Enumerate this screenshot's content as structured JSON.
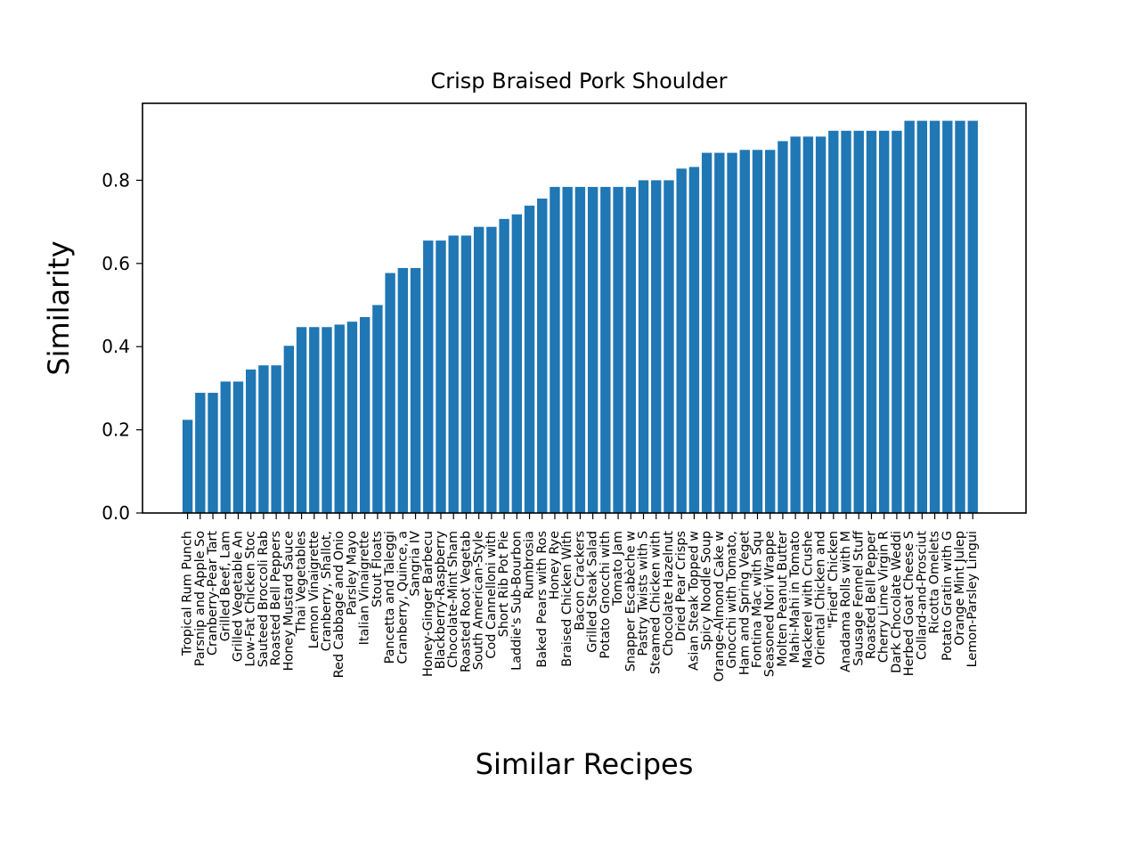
{
  "chart_data": {
    "type": "bar",
    "title": "Crisp Braised Pork Shoulder",
    "xlabel": "Similar Recipes",
    "ylabel": "Similarity",
    "ylim": [
      0,
      0.985
    ],
    "yticks": [
      "0.0",
      "0.2",
      "0.4",
      "0.6",
      "0.8"
    ],
    "bar_color": "#1f77b4",
    "grid": false,
    "legend": "none",
    "categories": [
      "Tropical Rum Punch",
      "Parsnip and Apple So",
      "Cranberry-Pear Tart",
      "Grilled Beef, Lam",
      "Grilled Vegetable An",
      "Low-Fat Chicken Stoc",
      "Sauteed Broccoli Rab",
      "Roasted Bell Peppers",
      "Honey Mustard Sauce",
      "Thai Vegetables",
      "Lemon Vinaigrette",
      "Cranberry, Shallot,",
      "Red Cabbage and Onio",
      "Parsley Mayo",
      "Italian Vinaigrette",
      "Stout Floats",
      "Pancetta and Taleggi",
      "Cranberry, Quince, a",
      "Sangria IV",
      "Honey-Ginger Barbecu",
      "Blackberry-Raspberry",
      "Chocolate-Mint Sham",
      "Roasted Root Vegetab",
      "South American-Style",
      "Cod Cannelloni with",
      "Short Rib Pot Pie",
      "Laddie's Sub-Bourbon",
      "Rumbrosia",
      "Baked Pears with Ros",
      "Honey Rye",
      "Braised Chicken With",
      "Bacon Crackers",
      "Grilled Steak Salad",
      "Potato Gnocchi with",
      "Tomato Jam",
      "Snapper Escabèche w",
      "Pastry Twists with S",
      "Steamed Chicken with",
      "Chocolate Hazelnut",
      "Dried Pear Crisps",
      "Asian Steak Topped w",
      "Spicy Noodle Soup",
      "Orange-Almond Cake w",
      "Gnocchi with Tomato,",
      "Ham and Spring Veget",
      "Fontina Mac with Squ",
      "Seasoned Nori Wrappe",
      "Molten Peanut Butter",
      "Mahi-Mahi in Tomato",
      "Mackerel with Crushe",
      "Oriental Chicken and",
      "\"Fried\" Chicken",
      "Anadama Rolls with M",
      "Sausage Fennel Stuff",
      "Roasted Bell Pepper",
      "Cherry Lime Virgin R",
      "Dark Chocolate Weddi",
      "Herbed Goat Cheese S",
      "Collard-and-Prosciut",
      "Ricotta Omelets",
      "Potato Gratin with G",
      "Orange Mint Julep",
      "Lemon-Parsley Lingui"
    ],
    "values": [
      0.224,
      0.289,
      0.289,
      0.316,
      0.316,
      0.345,
      0.355,
      0.355,
      0.402,
      0.447,
      0.447,
      0.447,
      0.453,
      0.46,
      0.471,
      0.5,
      0.577,
      0.589,
      0.589,
      0.655,
      0.655,
      0.667,
      0.667,
      0.688,
      0.688,
      0.707,
      0.718,
      0.739,
      0.756,
      0.784,
      0.784,
      0.784,
      0.784,
      0.784,
      0.784,
      0.784,
      0.8,
      0.8,
      0.8,
      0.828,
      0.832,
      0.866,
      0.866,
      0.866,
      0.873,
      0.873,
      0.873,
      0.894,
      0.905,
      0.905,
      0.905,
      0.919,
      0.919,
      0.919,
      0.919,
      0.919,
      0.919,
      0.943,
      0.943,
      0.943,
      0.943,
      0.943,
      0.943
    ]
  }
}
